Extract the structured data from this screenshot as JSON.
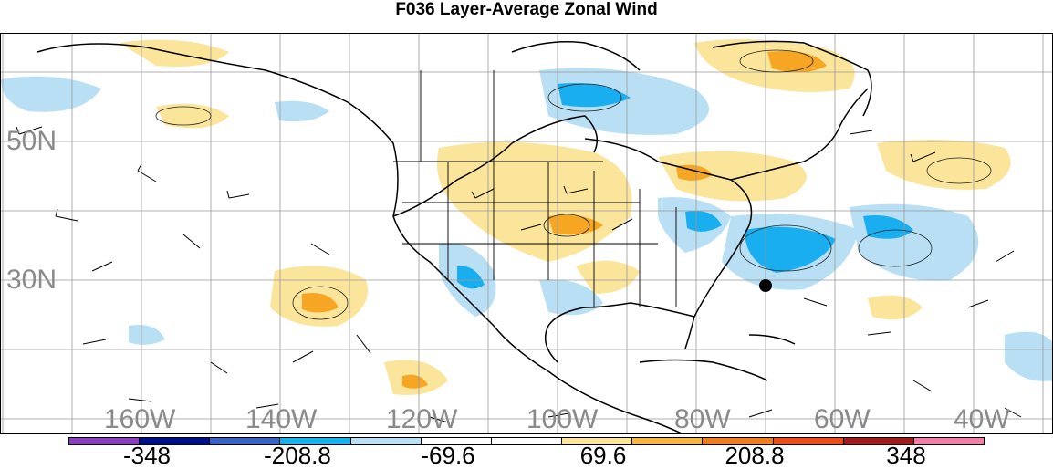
{
  "title": "F036 Layer-Average Zonal Wind",
  "lat_labels": [
    "50N",
    "30N"
  ],
  "lon_labels": [
    "160W",
    "140W",
    "120W",
    "100W",
    "80W",
    "60W",
    "40W"
  ],
  "colorbar": {
    "labels": [
      "-348",
      "-208.8",
      "-69.6",
      "69.6",
      "208.8",
      "348"
    ],
    "colors": [
      "#8a3fc2",
      "#000f8a",
      "#3763c7",
      "#12b4ee",
      "#b9dff5",
      "#ffffff",
      "#ffffff",
      "#fbe59b",
      "#f6b73c",
      "#f07c1a",
      "#f04b16",
      "#a41a1a",
      "#f07ea6"
    ]
  },
  "colors": {
    "positive_light": "#fbe59b",
    "positive_mid": "#f6a623",
    "negative_light": "#b9dff5",
    "negative_mid": "#18aef0",
    "lat_lon_labels": "#8a8a8a",
    "gridlines": "#999999"
  },
  "marker": {
    "name": "black-dot-marker"
  }
}
